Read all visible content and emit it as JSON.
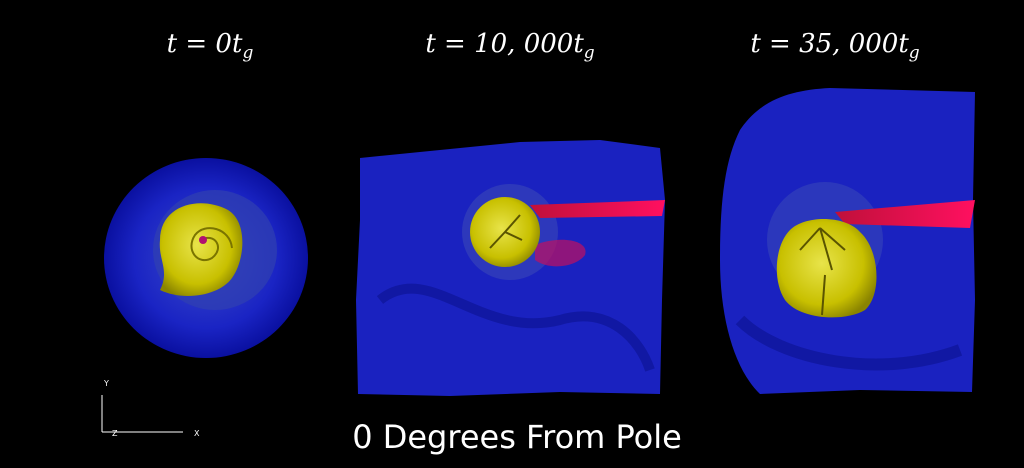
{
  "panels": [
    {
      "title": {
        "main": "t = 0t",
        "subscript": "g"
      }
    },
    {
      "title": {
        "main": "t = 10, 000t",
        "subscript": "g"
      }
    },
    {
      "title": {
        "main": "t = 35, 000t",
        "subscript": "g"
      }
    }
  ],
  "axes": {
    "y": "Y",
    "z": "Z",
    "x": "X"
  },
  "caption": "0 Degrees From Pole"
}
